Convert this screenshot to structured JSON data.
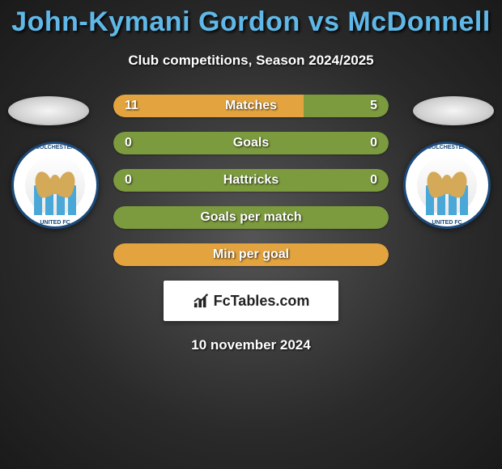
{
  "header": {
    "title": "John-Kymani Gordon vs McDonnell",
    "subtitle": "Club competitions, Season 2024/2025",
    "title_color": "#5fb8e8"
  },
  "club": {
    "name_top": "COLCHESTER",
    "name_bot": "UNITED FC",
    "ring_color": "#1b4a7a",
    "stripe_color": "#4aa8d8",
    "eagle_color": "#d4a958"
  },
  "bars": {
    "track_width": 340,
    "height": 28,
    "gap": 18,
    "color_a": "#e3a43f",
    "color_b": "#7c9a3e",
    "rows": [
      {
        "label": "Matches",
        "a": "11",
        "b": "5",
        "a_share": 0.69,
        "split": true
      },
      {
        "label": "Goals",
        "a": "0",
        "b": "0",
        "a_share": 0.0,
        "split": false
      },
      {
        "label": "Hattricks",
        "a": "0",
        "b": "0",
        "a_share": 0.0,
        "split": false
      },
      {
        "label": "Goals per match",
        "a": "",
        "b": "",
        "a_share": 0.0,
        "split": false
      },
      {
        "label": "Min per goal",
        "a": "",
        "b": "",
        "a_share": 1.0,
        "split": false,
        "all_a": true
      }
    ]
  },
  "watermark": {
    "text": "FcTables.com",
    "bg": "#ffffff"
  },
  "date": "10 november 2024"
}
